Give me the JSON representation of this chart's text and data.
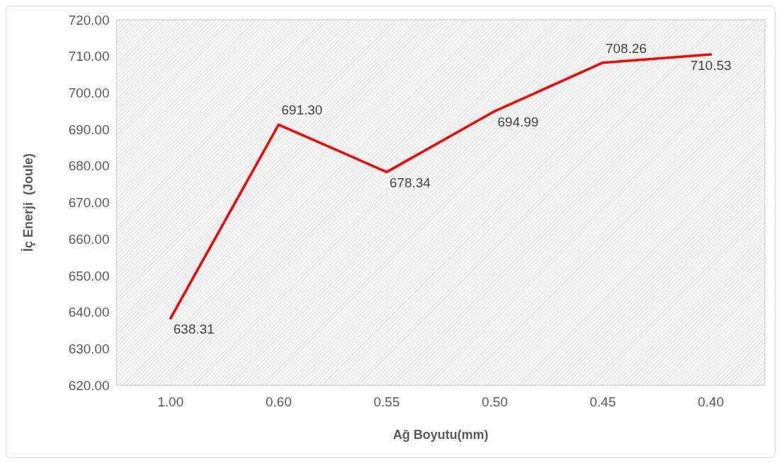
{
  "chart_data": {
    "type": "line",
    "xlabel": "Ağ Boyutu(mm)",
    "ylabel": "İç Enerji  (Joule)",
    "categories": [
      "1.00",
      "0.60",
      "0.55",
      "0.50",
      "0.45",
      "0.40"
    ],
    "series": [
      {
        "color": "#ff0000",
        "values": [
          638.31,
          691.3,
          678.34,
          694.99,
          708.26,
          710.53
        ]
      }
    ],
    "ylim": [
      620,
      720
    ],
    "yticks": [
      {
        "value": 620,
        "label": "620.00"
      },
      {
        "value": 630,
        "label": "630.00"
      },
      {
        "value": 640,
        "label": "640.00"
      },
      {
        "value": 650,
        "label": "650.00"
      },
      {
        "value": 660,
        "label": "660.00"
      },
      {
        "value": 670,
        "label": "670.00"
      },
      {
        "value": 680,
        "label": "680.00"
      },
      {
        "value": 690,
        "label": "690.00"
      },
      {
        "value": 700,
        "label": "700.00"
      },
      {
        "value": 710,
        "label": "710.00"
      },
      {
        "value": 720,
        "label": "720.00"
      }
    ],
    "value_labels": [
      "638.31",
      "691.30",
      "678.34",
      "694.99",
      "708.26",
      "710.53"
    ],
    "marker": "none",
    "line_style": "solid"
  }
}
